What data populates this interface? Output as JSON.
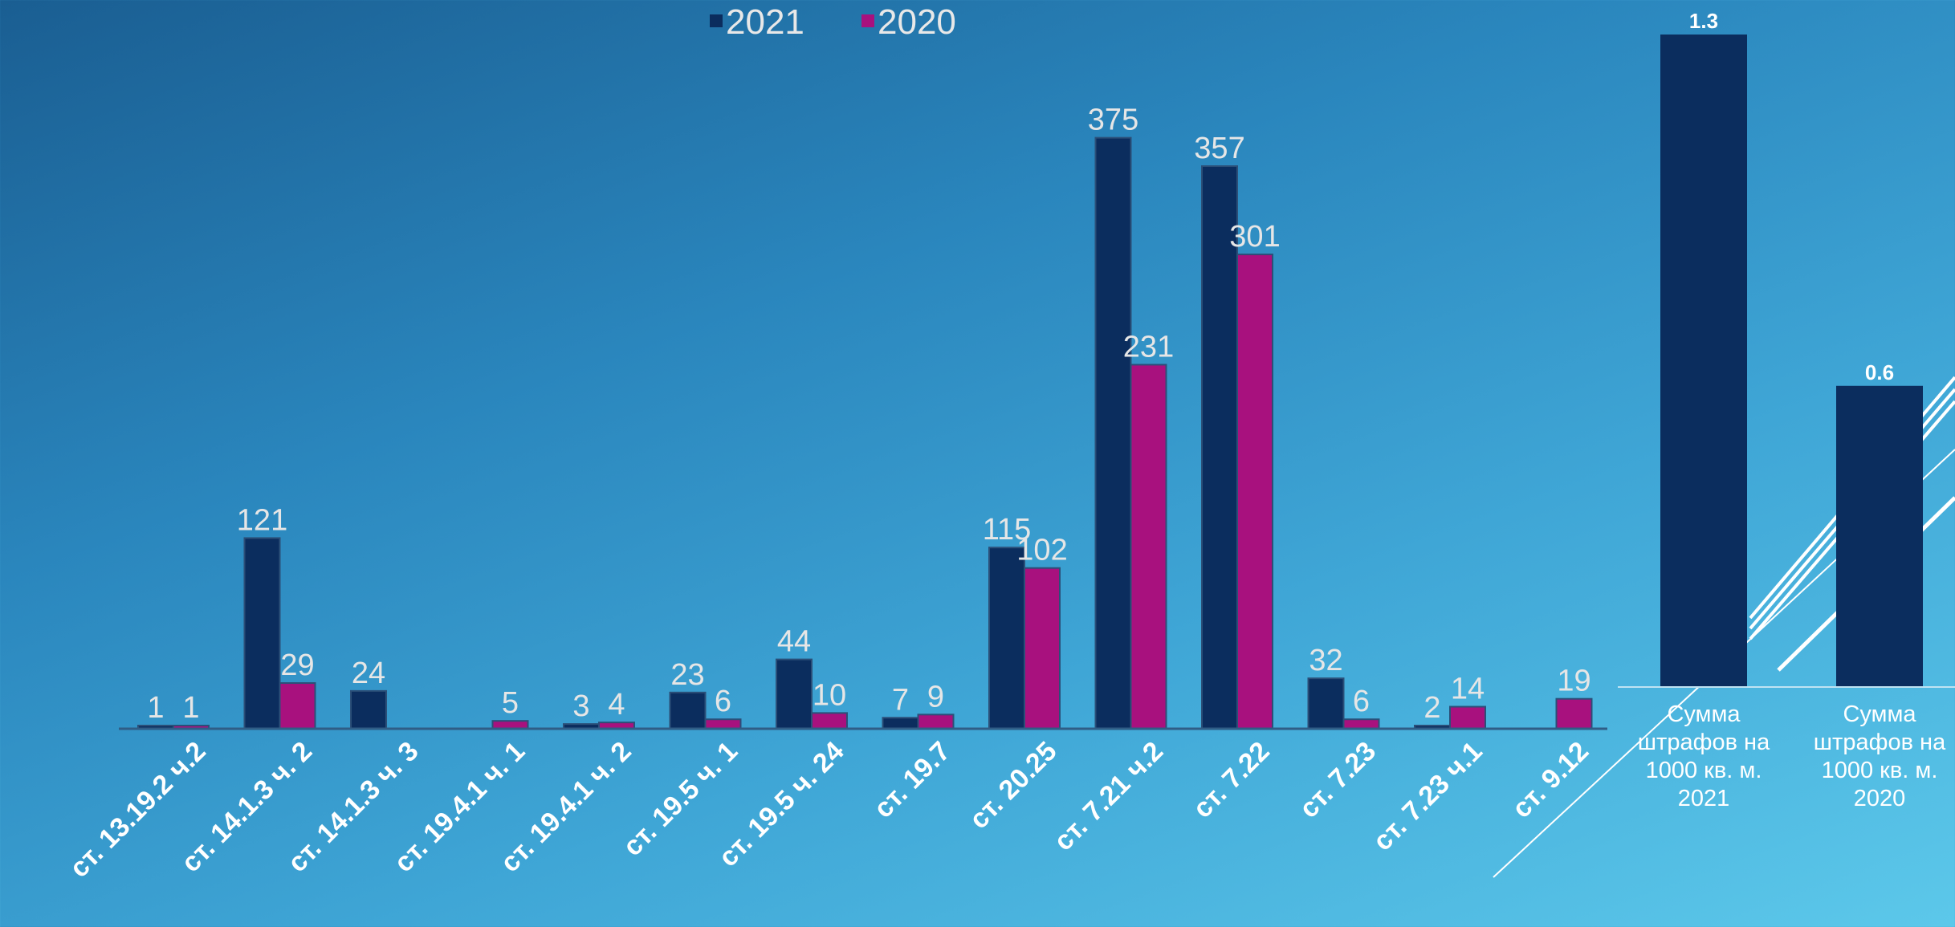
{
  "chart_data": [
    {
      "type": "bar",
      "categories": [
        "ст. 13.19.2 ч.2",
        "ст. 14.1.3 ч. 2",
        "ст. 14.1.3 ч. 3",
        "ст. 19.4.1 ч. 1",
        "ст. 19.4.1 ч. 2",
        "ст. 19.5 ч. 1",
        "ст. 19.5 ч. 24",
        "ст. 19.7",
        "ст. 20.25",
        "ст. 7.21 ч.2",
        "ст. 7.22",
        "ст. 7.23",
        "ст. 7.23 ч.1",
        "ст. 9.12"
      ],
      "series": [
        {
          "name": "2021",
          "color": "#0b2d5e",
          "values": [
            1,
            121,
            24,
            null,
            3,
            23,
            44,
            7,
            115,
            375,
            357,
            32,
            2,
            null
          ]
        },
        {
          "name": "2020",
          "color": "#a8117e",
          "values": [
            1,
            29,
            null,
            5,
            4,
            6,
            10,
            9,
            102,
            231,
            301,
            6,
            14,
            19
          ]
        }
      ],
      "legend_position": "top",
      "ylim": [
        0,
        385
      ],
      "grid": false
    },
    {
      "type": "bar",
      "categories": [
        "Сумма штрафов на 1000 кв. м. 2021",
        "Сумма штрафов на 1000 кв. м. 2020"
      ],
      "category_lines": [
        [
          "Сумма",
          "штрафов на",
          "1000 кв. м.",
          "2021"
        ],
        [
          "Сумма",
          "штрафов на",
          "1000 кв. м.",
          "2020"
        ]
      ],
      "values": [
        1.3,
        0.6
      ],
      "color": "#0b2d5e",
      "ylim": [
        0,
        1.3
      ],
      "grid": false
    }
  ]
}
